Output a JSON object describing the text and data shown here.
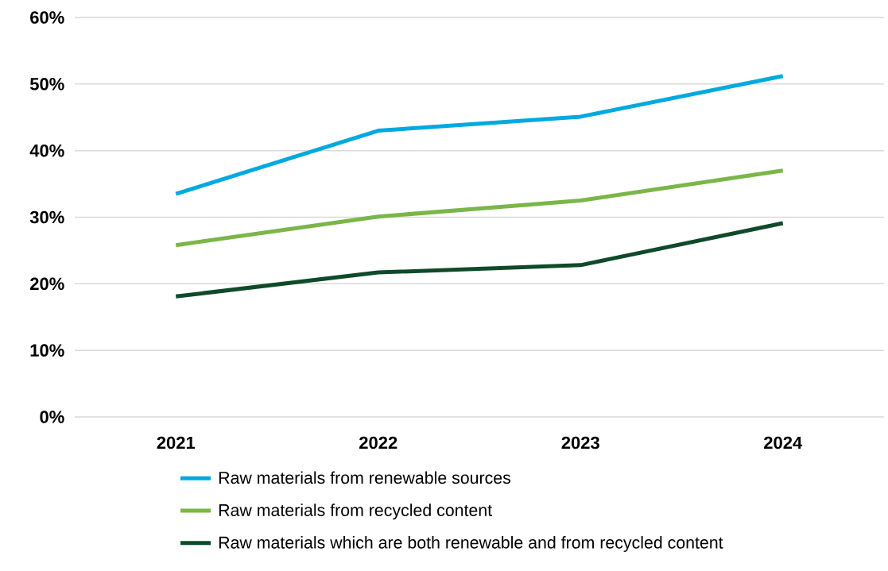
{
  "chart_data": {
    "type": "line",
    "categories": [
      "2021",
      "2022",
      "2023",
      "2024"
    ],
    "series": [
      {
        "name": "Raw materials from renewable sources",
        "color": "#00a9e0",
        "values": [
          33.5,
          43.0,
          45.1,
          51.2
        ]
      },
      {
        "name": "Raw materials from recycled content",
        "color": "#7ab648",
        "values": [
          25.8,
          30.1,
          32.5,
          37.0
        ]
      },
      {
        "name": "Raw materials which are both renewable and from recycled content",
        "color": "#0f4a2a",
        "values": [
          18.1,
          21.7,
          22.8,
          29.1
        ]
      }
    ],
    "ylim": [
      0,
      60
    ],
    "yticks": [
      {
        "value": 0,
        "label": "0%"
      },
      {
        "value": 10,
        "label": "10%"
      },
      {
        "value": 20,
        "label": "20%"
      },
      {
        "value": 30,
        "label": "30%"
      },
      {
        "value": 40,
        "label": "40%"
      },
      {
        "value": 50,
        "label": "50%"
      },
      {
        "value": 60,
        "label": "60%"
      }
    ],
    "grid": "y",
    "legend": "bottom",
    "marker": "none",
    "line_style": "solid"
  }
}
